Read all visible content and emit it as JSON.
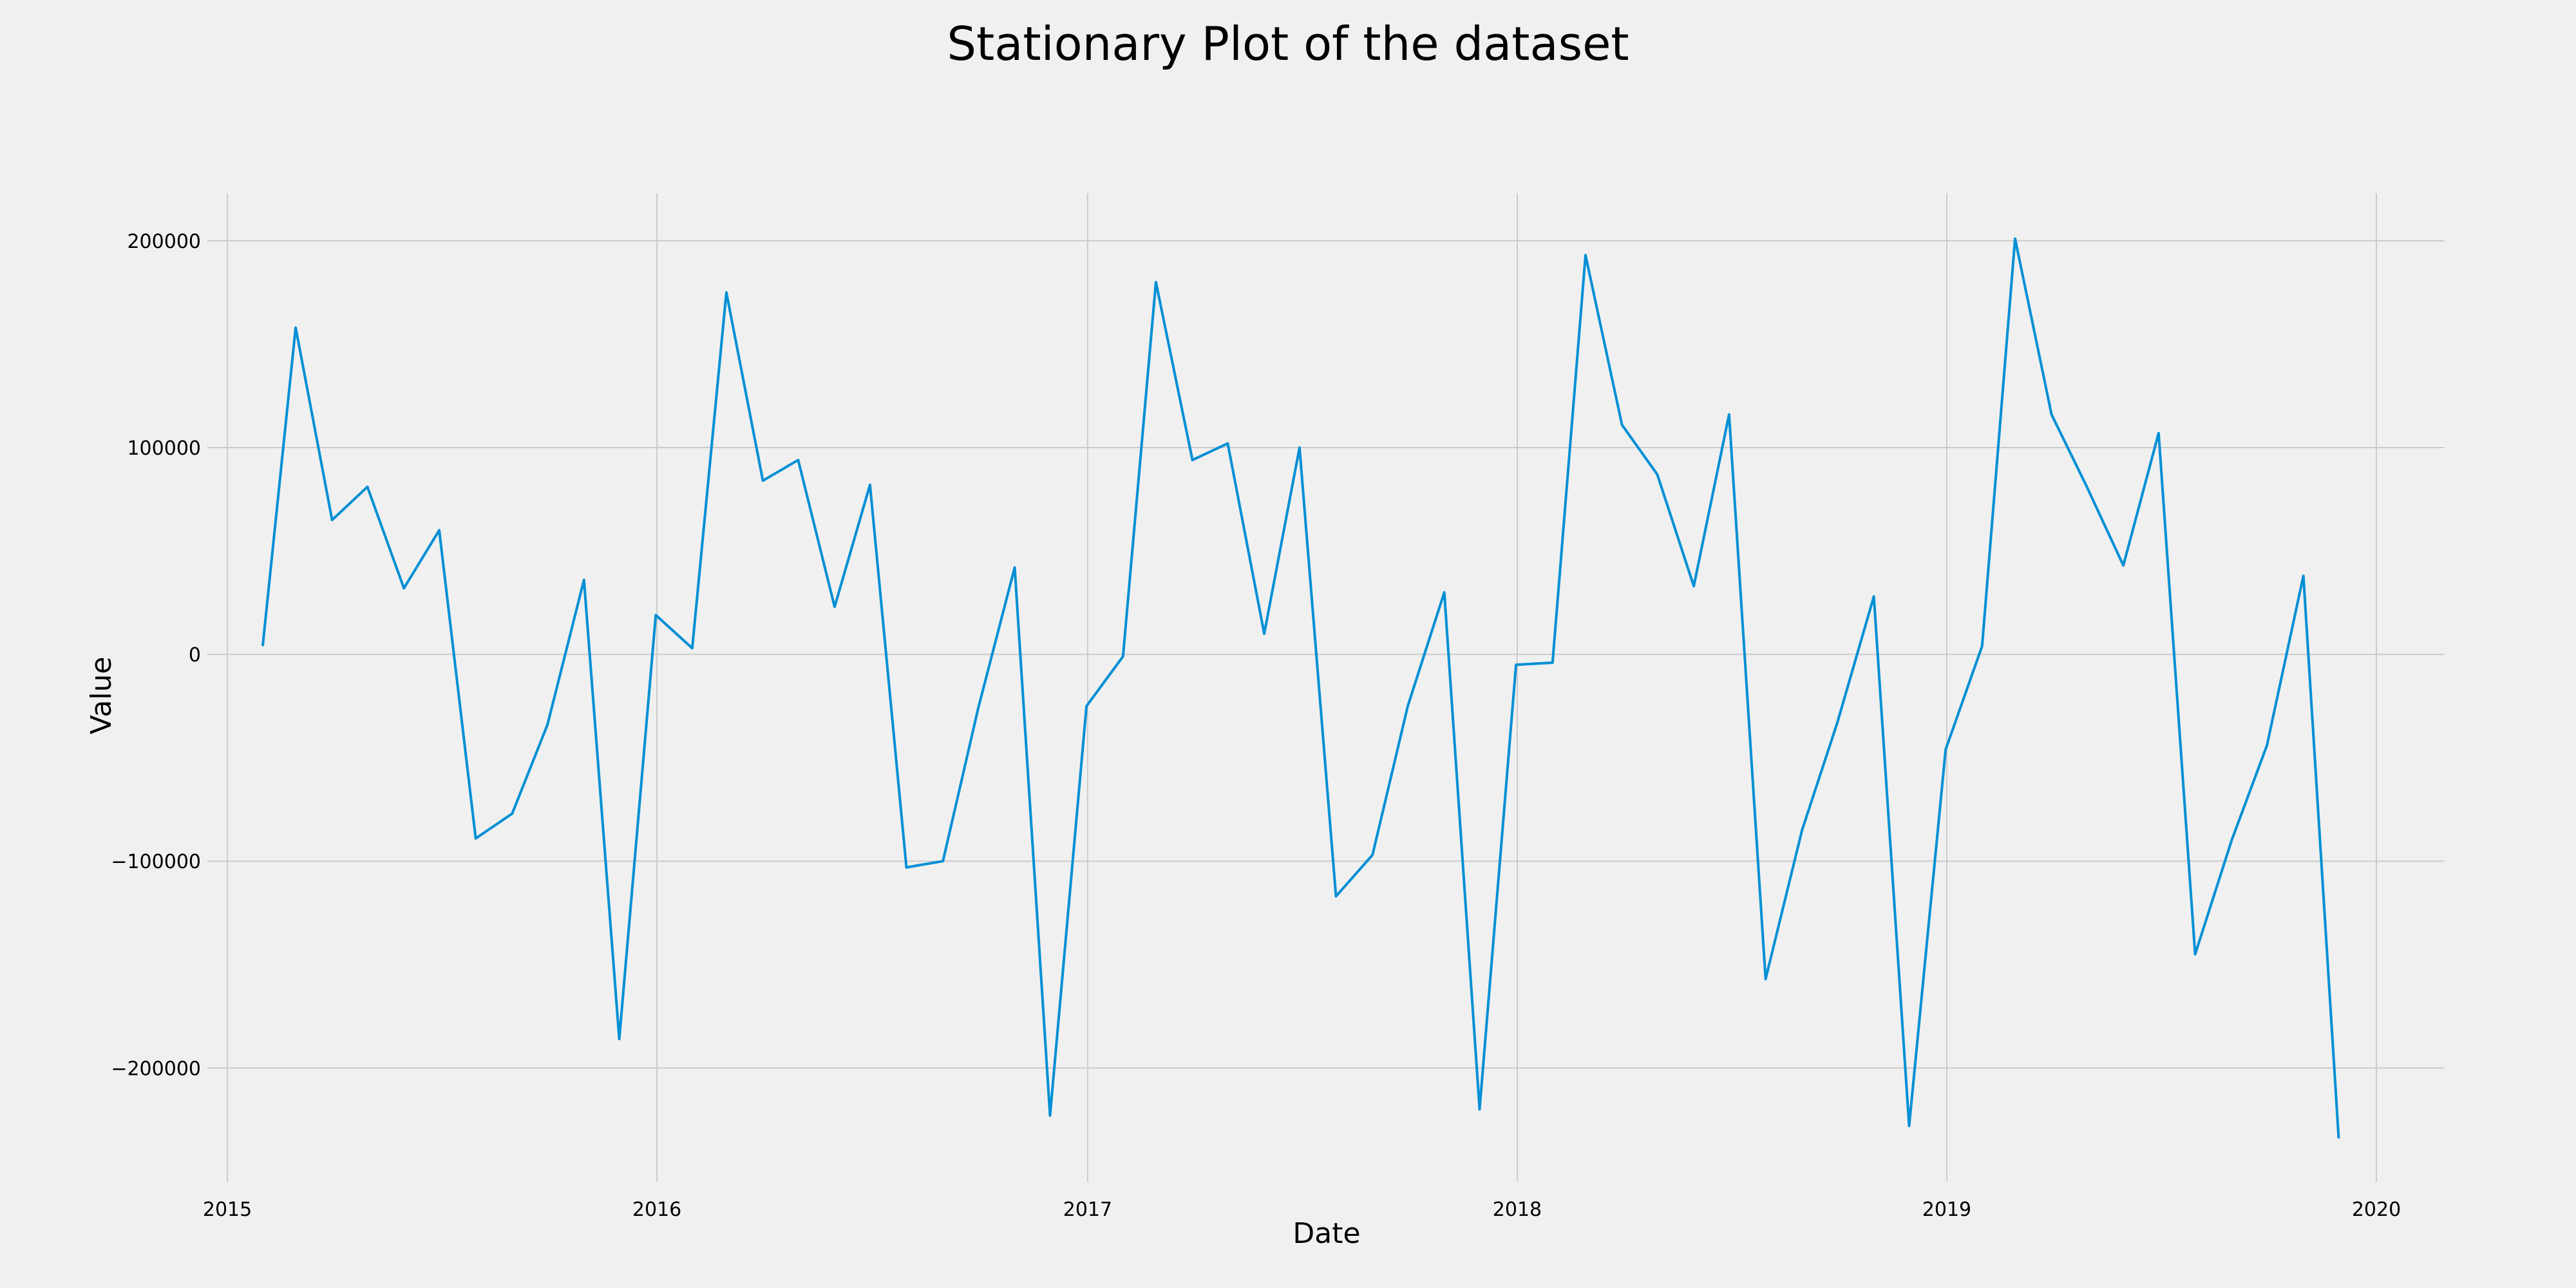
{
  "chart_data": {
    "type": "line",
    "title": "Stationary Plot of the dataset",
    "xlabel": "Date",
    "ylabel": "Value",
    "grid": true,
    "line_color": "#008fd5",
    "background_color": "#f0f0f0",
    "xlim": [
      "2014-12-15",
      "2020-02-28"
    ],
    "ylim": [
      -255000,
      223000
    ],
    "x_ticks": [
      "2015",
      "2016",
      "2017",
      "2018",
      "2019",
      "2020"
    ],
    "y_ticks": [
      {
        "value": -200000,
        "label": "−200000"
      },
      {
        "value": -100000,
        "label": "−100000"
      },
      {
        "value": 0,
        "label": "0"
      },
      {
        "value": 100000,
        "label": "100000"
      },
      {
        "value": 200000,
        "label": "200000"
      }
    ],
    "series": [
      {
        "x": [
          "2015-01-31",
          "2015-02-28",
          "2015-03-31",
          "2015-04-30",
          "2015-05-31",
          "2015-06-30",
          "2015-07-31",
          "2015-08-31",
          "2015-09-30",
          "2015-10-31",
          "2015-11-30",
          "2015-12-31",
          "2016-01-31",
          "2016-02-29",
          "2016-03-31",
          "2016-04-30",
          "2016-05-31",
          "2016-06-30",
          "2016-07-31",
          "2016-08-31",
          "2016-09-30",
          "2016-10-31",
          "2016-11-30",
          "2016-12-31",
          "2017-01-31",
          "2017-02-28",
          "2017-03-31",
          "2017-04-30",
          "2017-05-31",
          "2017-06-30",
          "2017-07-31",
          "2017-08-31",
          "2017-09-30",
          "2017-10-31",
          "2017-11-30",
          "2017-12-31",
          "2018-01-31",
          "2018-02-28",
          "2018-03-31",
          "2018-04-30",
          "2018-05-31",
          "2018-06-30",
          "2018-07-31",
          "2018-08-31",
          "2018-09-30",
          "2018-10-31",
          "2018-11-30",
          "2018-12-31",
          "2019-01-31",
          "2019-02-28",
          "2019-03-31",
          "2019-04-30",
          "2019-05-31",
          "2019-06-30",
          "2019-07-31",
          "2019-08-31",
          "2019-09-30",
          "2019-10-31",
          "2019-11-30"
        ],
        "values": [
          4000,
          158000,
          65000,
          81000,
          32000,
          60000,
          -89000,
          -77000,
          -34000,
          36000,
          -186000,
          19000,
          3000,
          175000,
          84000,
          94000,
          23000,
          82000,
          -103000,
          -100000,
          -26000,
          42000,
          -223000,
          -25000,
          -1000,
          180000,
          94000,
          102000,
          10000,
          100000,
          -117000,
          -97000,
          -25000,
          30000,
          -220000,
          -5000,
          -4000,
          193000,
          111000,
          87000,
          33000,
          116000,
          -157000,
          -85000,
          -33000,
          28000,
          -228000,
          -46000,
          4000,
          201000,
          116000,
          81000,
          43000,
          107000,
          -145000,
          -90000,
          -44000,
          38000,
          -234000
        ]
      }
    ]
  }
}
